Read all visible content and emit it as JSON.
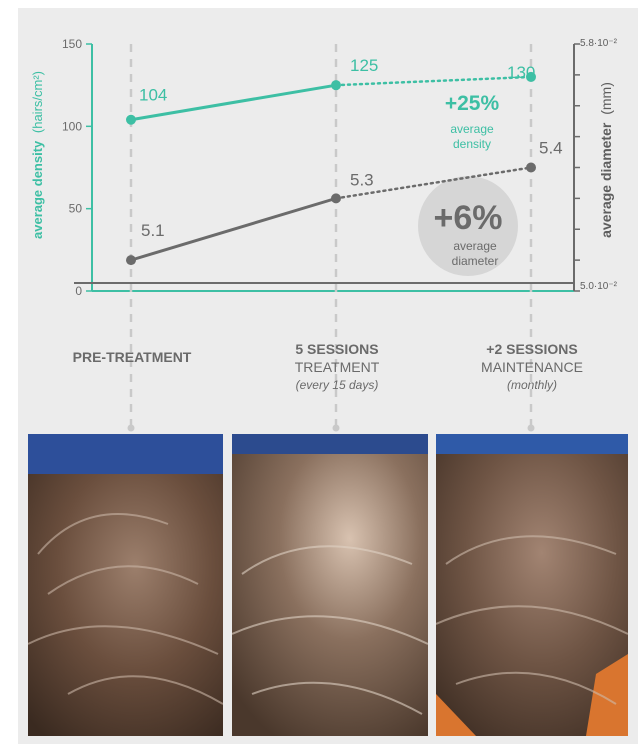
{
  "chart_data": {
    "type": "line",
    "categories": [
      "PRE-TREATMENT",
      "5 SESSIONS TREATMENT",
      "+2 SESSIONS MAINTENANCE"
    ],
    "series": [
      {
        "name": "average density",
        "values": [
          104,
          125,
          130
        ],
        "color": "#3dbfa4",
        "labels": [
          "104",
          "125",
          "130"
        ]
      },
      {
        "name": "average diameter",
        "values": [
          5.1,
          5.3,
          5.4
        ],
        "color": "#6b6b6b",
        "labels": [
          "5.1",
          "5.3",
          "5.4"
        ]
      }
    ],
    "left_axis": {
      "label_bold": "average density",
      "label_unit": "(hairs/cm²)",
      "ticks": [
        0,
        50,
        100,
        150
      ],
      "range": [
        0,
        150
      ]
    },
    "right_axis": {
      "label_bold": "average diameter",
      "label_unit": "(mm)",
      "top_label": "5.8·10⁻²",
      "bottom_label": "5.0·10⁻²",
      "range": [
        5.0,
        5.8
      ],
      "unit_multiplier": "10⁻²"
    },
    "annotations": {
      "density_change": "+25%",
      "density_line1": "average",
      "density_line2": "density",
      "diameter_change": "+6%",
      "diameter_line1": "average",
      "diameter_line2": "diameter"
    }
  },
  "stages": [
    {
      "line1": "PRE-TREATMENT",
      "line2": "",
      "line3": ""
    },
    {
      "line1": "5 SESSIONS",
      "line2": "TREATMENT",
      "line3": "(every 15 days)"
    },
    {
      "line1": "+2 SESSIONS",
      "line2": "MAINTENANCE",
      "line3": "(monthly)"
    }
  ],
  "colors": {
    "density": "#3dbfa4",
    "diameter": "#6b6b6b",
    "background": "#ececec"
  }
}
